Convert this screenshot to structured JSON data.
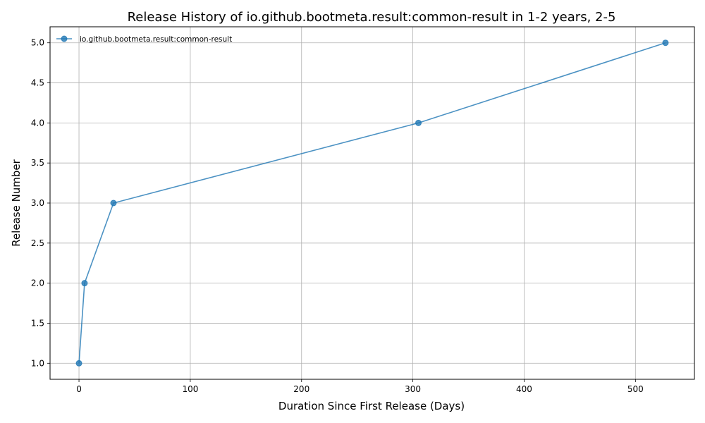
{
  "chart_data": {
    "type": "line",
    "title": "Release History of io.github.bootmeta.result:common-result in 1-2 years, 2-5",
    "xlabel": "Duration Since First Release (Days)",
    "ylabel": "Release Number",
    "xlim": [
      -26,
      553
    ],
    "ylim": [
      0.8,
      5.2
    ],
    "x_ticks": [
      0,
      100,
      200,
      300,
      400,
      500
    ],
    "y_ticks": [
      1.0,
      1.5,
      2.0,
      2.5,
      3.0,
      3.5,
      4.0,
      4.5,
      5.0
    ],
    "x_tick_labels": [
      "0",
      "100",
      "200",
      "300",
      "400",
      "500"
    ],
    "y_tick_labels": [
      "1.0",
      "1.5",
      "2.0",
      "2.5",
      "3.0",
      "3.5",
      "4.0",
      "4.5",
      "5.0"
    ],
    "grid": true,
    "legend_position": "top-left",
    "series": [
      {
        "name": "io.github.bootmeta.result:common-result",
        "color": "#1f77b4",
        "marker": "circle",
        "x": [
          0,
          5,
          31,
          305,
          527
        ],
        "y": [
          1,
          2,
          3,
          4,
          5
        ]
      }
    ]
  }
}
